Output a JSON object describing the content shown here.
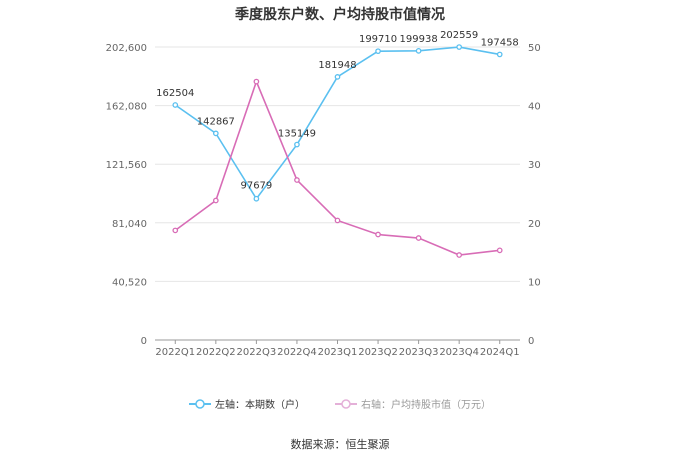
{
  "chart_data": {
    "type": "line",
    "title": "季度股东户数、户均持股市值情况",
    "categories": [
      "2022Q1",
      "2022Q2",
      "2022Q3",
      "2022Q4",
      "2023Q1",
      "2023Q2",
      "2023Q3",
      "2023Q4",
      "2024Q1"
    ],
    "left_axis": {
      "ticks": [
        "0",
        "40,520",
        "81,040",
        "121,560",
        "162,080",
        "202,600"
      ],
      "ylim": [
        0,
        202600
      ]
    },
    "right_axis": {
      "ticks": [
        "0",
        "10",
        "20",
        "30",
        "40",
        "50"
      ],
      "ylim": [
        0,
        50
      ]
    },
    "series": [
      {
        "name": "左轴：本期数（户）",
        "axis": "left",
        "color": "#5bc0f0",
        "values": [
          162504,
          142867,
          97679,
          135149,
          181948,
          199710,
          199938,
          202559,
          197458
        ],
        "labels": [
          "162504",
          "142867",
          "97679",
          "135149",
          "181948",
          "199710",
          "199938",
          "202559",
          "197458"
        ]
      },
      {
        "name": "右轴：户均持股市值（万元）",
        "axis": "right",
        "color": "#d86cb6",
        "values": [
          18.7,
          23.8,
          44.1,
          27.3,
          20.4,
          18.0,
          17.4,
          14.5,
          15.3
        ]
      }
    ],
    "grid": true,
    "legend_position": "bottom"
  },
  "source": "数据来源：恒生聚源"
}
